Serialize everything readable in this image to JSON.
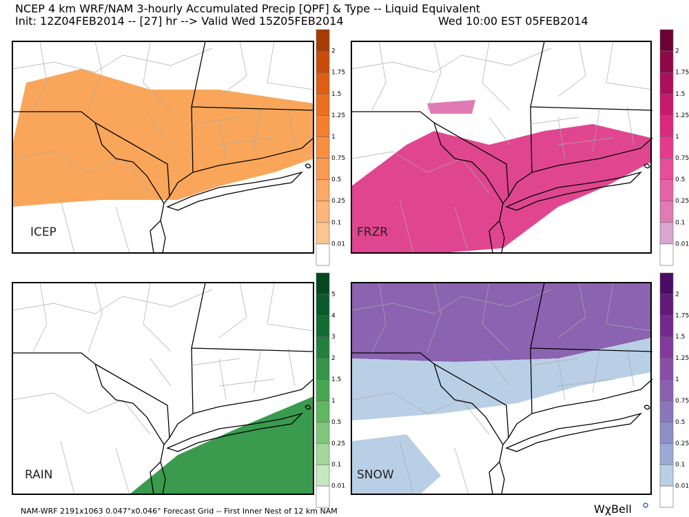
{
  "header": {
    "title": "NCEP 4 km WRF/NAM 3-hourly Accumulated Precip [QPF] & Type -- Liquid Equivalent",
    "init": "Init: 12Z04FEB2014 -- [27] hr --> Valid Wed 15Z05FEB2014",
    "local_time": "Wed 10:00 EST 05FEB2014"
  },
  "panels": [
    {
      "label": "ICEP",
      "colorbar": {
        "labels": [
          "2",
          "1.75",
          "1.5",
          "1.25",
          "1",
          "0.75",
          "0.5",
          "0.25",
          "0.1",
          "0.01"
        ],
        "colors": [
          "#a83a05",
          "#c94c0a",
          "#de5e14",
          "#ec6f22",
          "#f47f30",
          "#f98d40",
          "#fb9a52",
          "#fca866",
          "#fdb57a",
          "#fdc48f",
          "#ffffff"
        ]
      }
    },
    {
      "label": "FRZR",
      "colorbar": {
        "labels": [
          "2",
          "1.75",
          "1.5",
          "1.25",
          "1",
          "0.75",
          "0.5",
          "0.25",
          "0.1",
          "0.01"
        ],
        "colors": [
          "#6b0436",
          "#8e0848",
          "#ae0f5a",
          "#c91a6c",
          "#dc277b",
          "#e63a8b",
          "#e84d98",
          "#e663a6",
          "#e07ab5",
          "#d9a6cf",
          "#ffffff"
        ]
      }
    },
    {
      "label": "RAIN",
      "colorbar": {
        "labels": [
          "5",
          "4",
          "3",
          "2",
          "1.5",
          "1",
          "0.5",
          "0.25",
          "0.1",
          "0.01"
        ],
        "colors": [
          "#054820",
          "#0b5a2c",
          "#146b34",
          "#22803f",
          "#34954a",
          "#47a652",
          "#5fb762",
          "#7fc77c",
          "#a3d79c",
          "#c6e8bf",
          "#ffffff"
        ]
      }
    },
    {
      "label": "SNOW",
      "colorbar": {
        "labels": [
          "2",
          "1.75",
          "1.5",
          "1.25",
          "1",
          "0.75",
          "0.5",
          "0.25",
          "0.1",
          "0.01"
        ],
        "colors": [
          "#4b0c63",
          "#611a79",
          "#74288b",
          "#83399a",
          "#8a4ea5",
          "#8b61af",
          "#8a76bb",
          "#8d8fc8",
          "#9aaad4",
          "#b9cfe6",
          "#ffffff"
        ]
      }
    }
  ],
  "footer": {
    "grid": "NAM-WRF 2191x1063 0.047°x0.046° Forecast Grid -- First Inner Nest of 12 km NAM",
    "brand": "WχBell"
  }
}
